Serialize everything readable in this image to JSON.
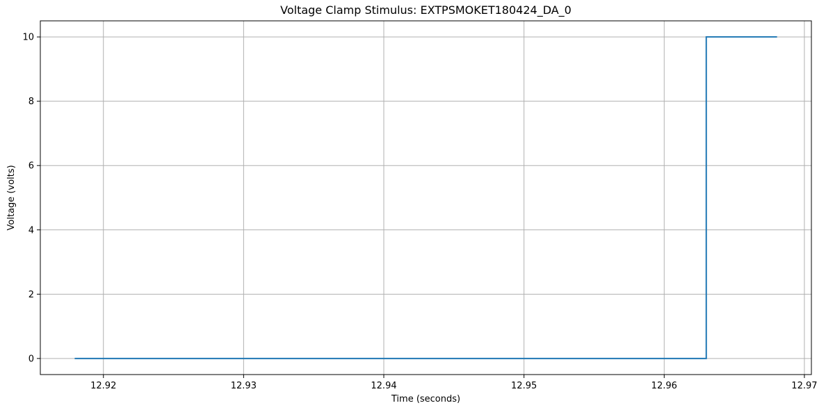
{
  "chart_data": {
    "type": "line",
    "title": "Voltage Clamp Stimulus: EXTPSMOKET180424_DA_0",
    "xlabel": "Time (seconds)",
    "ylabel": "Voltage (volts)",
    "xlim": [
      12.9155,
      12.9705
    ],
    "ylim": [
      -0.5,
      10.5
    ],
    "x_ticks": [
      12.92,
      12.93,
      12.94,
      12.95,
      12.96,
      12.97
    ],
    "x_tick_labels": [
      "12.92",
      "12.93",
      "12.94",
      "12.95",
      "12.96",
      "12.97"
    ],
    "y_ticks": [
      0,
      2,
      4,
      6,
      8,
      10
    ],
    "y_tick_labels": [
      "0",
      "2",
      "4",
      "6",
      "8",
      "10"
    ],
    "grid": true,
    "series": [
      {
        "color": "#1f77b4",
        "x": [
          12.918,
          12.963,
          12.963,
          12.968
        ],
        "y": [
          0,
          0,
          10,
          10
        ]
      }
    ]
  }
}
